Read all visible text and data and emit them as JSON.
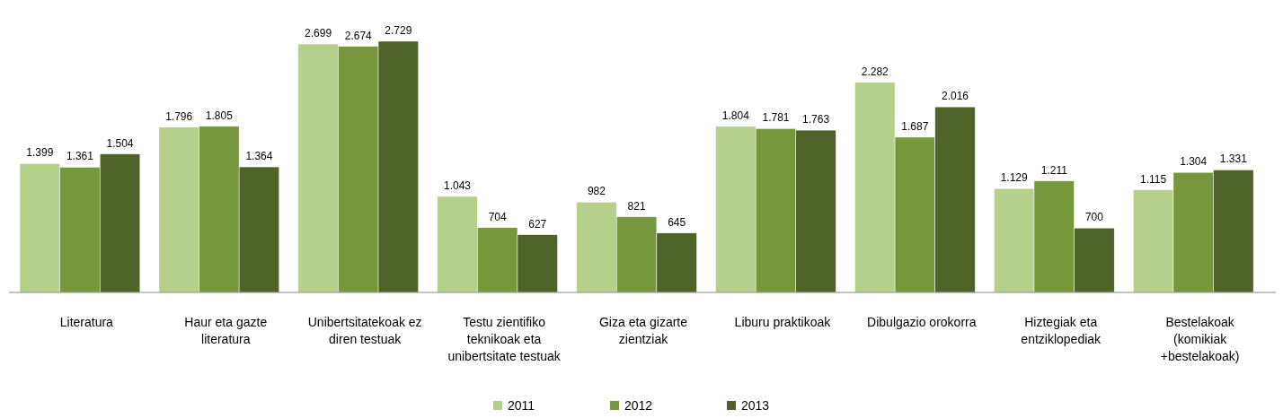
{
  "chart_data": {
    "type": "bar",
    "categories": [
      "Literatura",
      "Haur eta gazte literatura",
      "Unibertsitatekoak ez diren testuak",
      "Testu zientifiko teknikoak eta unibertsitate testuak",
      "Giza eta gizarte zientziak",
      "Liburu praktikoak",
      "Dibulgazio orokorra",
      "Hiztegiak eta entziklopediak",
      "Bestelakoak (komikiak +bestelakoak)"
    ],
    "series": [
      {
        "name": "2011",
        "color": "#b5d08a",
        "values": [
          1399,
          1796,
          2699,
          1043,
          982,
          1804,
          2282,
          1129,
          1115
        ],
        "value_labels": [
          "1.399",
          "1.796",
          "2.699",
          "1.043",
          "982",
          "1.804",
          "2.282",
          "1.129",
          "1.115"
        ]
      },
      {
        "name": "2012",
        "color": "#77973d",
        "values": [
          1361,
          1805,
          2674,
          704,
          821,
          1781,
          1687,
          1211,
          1304
        ],
        "value_labels": [
          "1.361",
          "1.805",
          "2.674",
          "704",
          "821",
          "1.781",
          "1.687",
          "1.211",
          "1.304"
        ]
      },
      {
        "name": "2013",
        "color": "#4f6228",
        "values": [
          1504,
          1364,
          2729,
          627,
          645,
          1763,
          2016,
          700,
          1331
        ],
        "value_labels": [
          "1.504",
          "1.364",
          "2.729",
          "627",
          "645",
          "1.763",
          "2.016",
          "700",
          "1.331"
        ]
      }
    ],
    "legend": "bottom"
  }
}
